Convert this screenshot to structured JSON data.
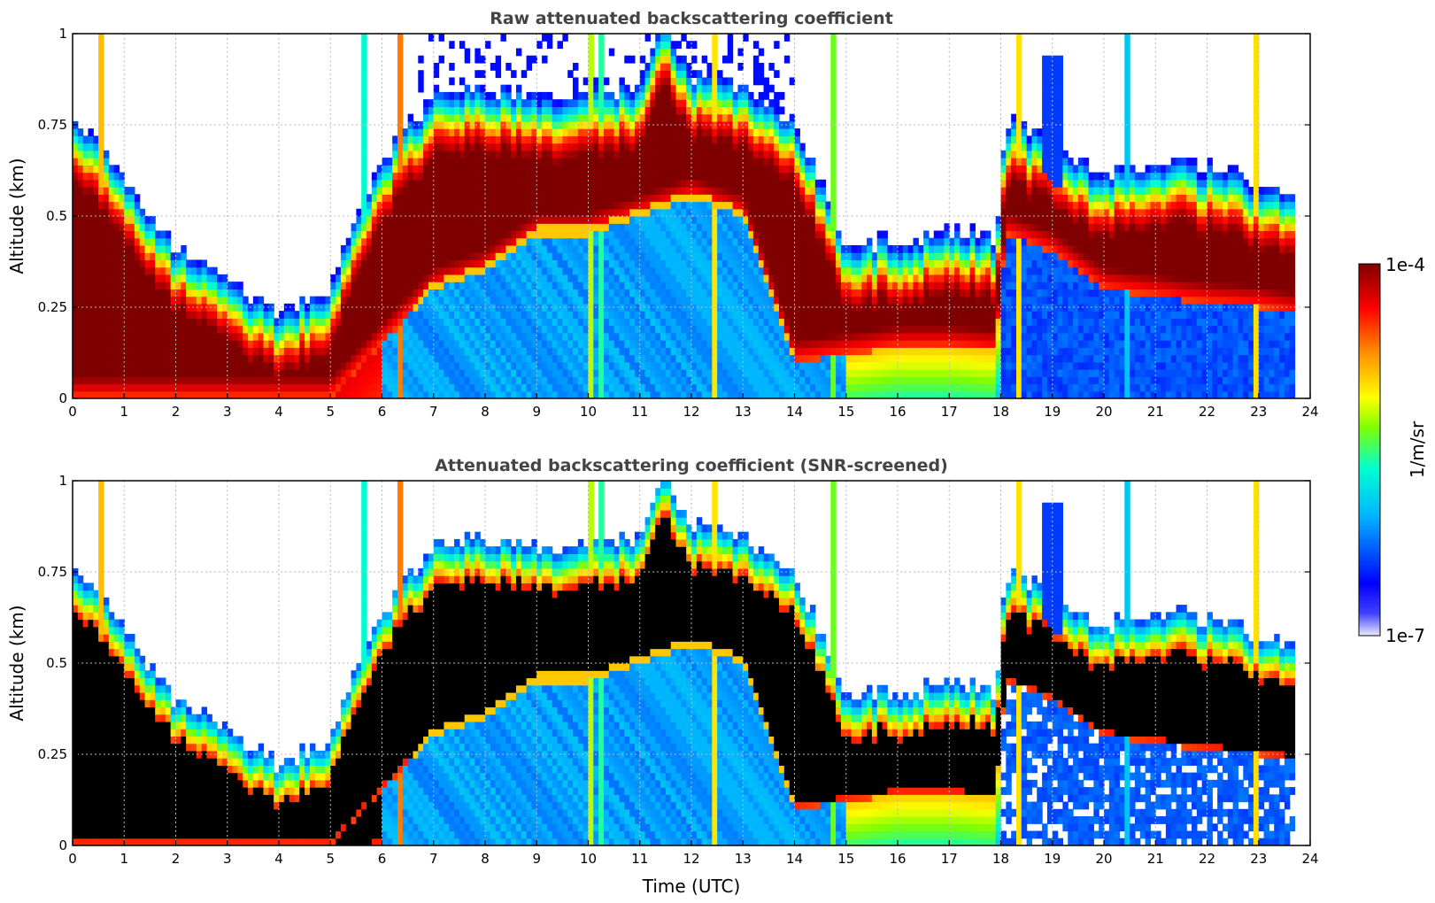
{
  "chart_data": [
    {
      "type": "heatmap",
      "title": "Raw attenuated backscattering coefficient",
      "xlabel": "",
      "ylabel": "Altitude (km)",
      "xlim": [
        0,
        24
      ],
      "ylim": [
        0,
        1
      ],
      "xticks": [
        "0",
        "1",
        "2",
        "3",
        "4",
        "5",
        "6",
        "7",
        "8",
        "9",
        "10",
        "11",
        "12",
        "13",
        "14",
        "15",
        "16",
        "17",
        "18",
        "19",
        "20",
        "21",
        "22",
        "23",
        "24"
      ],
      "yticks": [
        "0",
        "0.25",
        "0.5",
        "0.75",
        "1"
      ],
      "grid": true,
      "layer_top_km": [
        [
          0,
          0.68
        ],
        [
          1,
          0.5
        ],
        [
          2,
          0.3
        ],
        [
          3,
          0.22
        ],
        [
          4,
          0.12
        ],
        [
          5,
          0.2
        ],
        [
          6,
          0.55
        ],
        [
          7,
          0.72
        ],
        [
          8,
          0.75
        ],
        [
          9,
          0.72
        ],
        [
          10,
          0.72
        ],
        [
          11,
          0.75
        ],
        [
          11.5,
          0.92
        ],
        [
          12,
          0.78
        ],
        [
          13,
          0.75
        ],
        [
          14,
          0.65
        ],
        [
          15,
          0.32
        ],
        [
          16,
          0.32
        ],
        [
          17,
          0.35
        ],
        [
          17.9,
          0.33
        ],
        [
          18.1,
          0.65
        ],
        [
          19,
          0.6
        ],
        [
          20,
          0.5
        ],
        [
          21,
          0.55
        ],
        [
          22,
          0.52
        ],
        [
          23,
          0.48
        ],
        [
          23.7,
          0.45
        ]
      ],
      "layer_base_km": [
        [
          0,
          0.0
        ],
        [
          1,
          0.0
        ],
        [
          2,
          0.0
        ],
        [
          3,
          0.0
        ],
        [
          4,
          0.0
        ],
        [
          5,
          0.0
        ],
        [
          6,
          0.15
        ],
        [
          7,
          0.3
        ],
        [
          8,
          0.35
        ],
        [
          9,
          0.45
        ],
        [
          10,
          0.45
        ],
        [
          11,
          0.5
        ],
        [
          12,
          0.55
        ],
        [
          13,
          0.5
        ],
        [
          14,
          0.1
        ],
        [
          15,
          0.12
        ],
        [
          16,
          0.14
        ],
        [
          17,
          0.14
        ],
        [
          17.9,
          0.13
        ],
        [
          18.1,
          0.45
        ],
        [
          19,
          0.4
        ],
        [
          20,
          0.3
        ],
        [
          21,
          0.28
        ],
        [
          22,
          0.26
        ],
        [
          23,
          0.25
        ],
        [
          23.7,
          0.23
        ]
      ],
      "data_end_hour": 23.7
    },
    {
      "type": "heatmap",
      "title": "Attenuated backscattering coefficient (SNR-screened)",
      "xlabel": "Time (UTC)",
      "ylabel": "Altitude (km)",
      "xlim": [
        0,
        24
      ],
      "ylim": [
        0,
        1
      ],
      "xticks": [
        "0",
        "1",
        "2",
        "3",
        "4",
        "5",
        "6",
        "7",
        "8",
        "9",
        "10",
        "11",
        "12",
        "13",
        "14",
        "15",
        "16",
        "17",
        "18",
        "19",
        "20",
        "21",
        "22",
        "23",
        "24"
      ],
      "yticks": [
        "0",
        "0.25",
        "0.5",
        "0.75",
        "1"
      ],
      "grid": true,
      "saturated_color": "#000000",
      "data_end_hour": 23.7
    }
  ],
  "colorbar": {
    "label": "1/m/sr",
    "max_label": "1e-4",
    "min_label": "1e-7",
    "colormap": [
      "#ececff",
      "#0000ff",
      "#00b4ff",
      "#00ffd0",
      "#7fff00",
      "#ffff00",
      "#ff9000",
      "#ff0000",
      "#7f0000"
    ]
  },
  "colors": {
    "background": "#ffffff",
    "frame": "#000000",
    "grid": "#bbbbbb",
    "title": "#444444"
  }
}
